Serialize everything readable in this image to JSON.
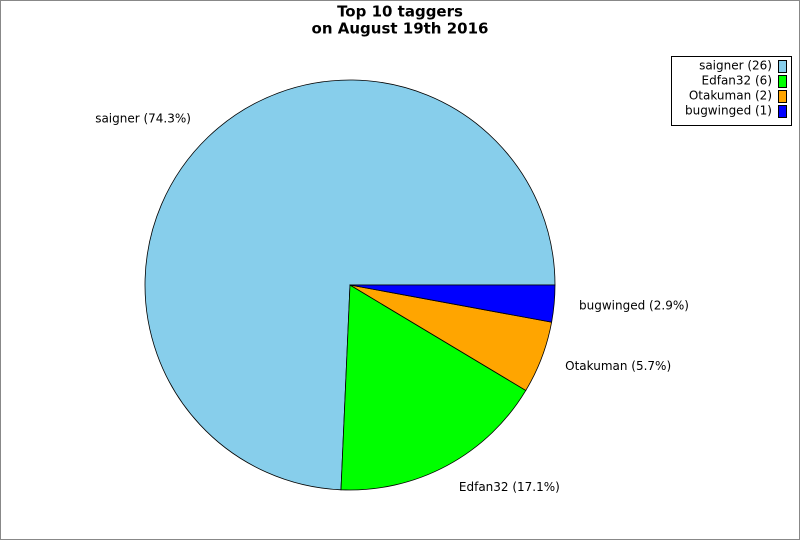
{
  "chart_data": {
    "type": "pie",
    "title": [
      "Top 10 taggers",
      "on August 19th 2016"
    ],
    "series": [
      {
        "name": "saigner",
        "color": "#87ceeb"
      },
      {
        "name": "Edfan32",
        "color": "#00ff00"
      },
      {
        "name": "Otakuman",
        "color": "#ffa500"
      },
      {
        "name": "bugwinged",
        "color": "#0000ff"
      }
    ],
    "values": [
      74.3,
      17.1,
      5.7,
      2.9
    ],
    "value_labels": [
      "saigner (74.3%)",
      "Edfan32 (17.1%)",
      "Otakuman (5.7%)",
      "bugwinged (2.9%)"
    ],
    "legend_labels": [
      "saigner (26)",
      "Edfan32 (6)",
      "Otakuman (2)",
      "bugwinged (1)"
    ],
    "legend": "top-right"
  }
}
